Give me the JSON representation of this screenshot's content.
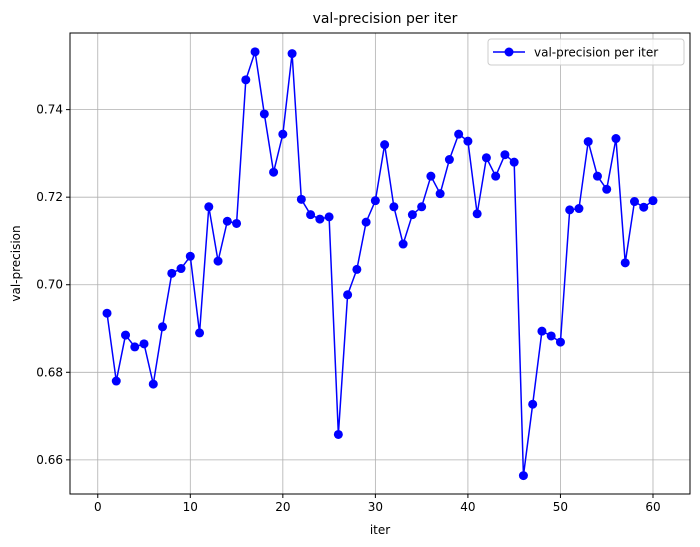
{
  "chart_data": {
    "type": "line",
    "title": "val-precision per iter",
    "xlabel": "iter",
    "ylabel": "val-precision",
    "xlim": [
      -3,
      64
    ],
    "ylim": [
      0.6522,
      0.7575
    ],
    "xticks": [
      0,
      10,
      20,
      30,
      40,
      50,
      60
    ],
    "yticks": [
      0.66,
      0.68,
      0.7,
      0.72,
      0.74
    ],
    "grid": true,
    "legend_position": "top-right",
    "series": [
      {
        "name": "val-precision per iter",
        "color": "#0000ff",
        "marker": "circle",
        "x": [
          1,
          2,
          3,
          4,
          5,
          6,
          7,
          8,
          9,
          10,
          11,
          12,
          13,
          14,
          15,
          16,
          17,
          18,
          19,
          20,
          21,
          22,
          23,
          24,
          25,
          26,
          27,
          28,
          29,
          30,
          31,
          32,
          33,
          34,
          35,
          36,
          37,
          38,
          39,
          40,
          41,
          42,
          43,
          44,
          45,
          46,
          47,
          48,
          49,
          50,
          51,
          52,
          53,
          54,
          55,
          56,
          57,
          58,
          59,
          60
        ],
        "values": [
          0.6935,
          0.678,
          0.6885,
          0.6858,
          0.6865,
          0.6773,
          0.6904,
          0.7026,
          0.7037,
          0.7065,
          0.689,
          0.7178,
          0.7054,
          0.7145,
          0.714,
          0.7468,
          0.7532,
          0.739,
          0.7257,
          0.7344,
          0.7528,
          0.7195,
          0.716,
          0.715,
          0.7155,
          0.6658,
          0.6977,
          0.7035,
          0.7143,
          0.7192,
          0.732,
          0.7178,
          0.7093,
          0.716,
          0.7178,
          0.7248,
          0.7208,
          0.7286,
          0.7344,
          0.7328,
          0.7162,
          0.729,
          0.7248,
          0.7297,
          0.728,
          0.6564,
          0.6727,
          0.6894,
          0.6883,
          0.6869,
          0.7171,
          0.7174,
          0.7327,
          0.7248,
          0.7218,
          0.7334,
          0.705,
          0.719,
          0.7177,
          0.7192
        ]
      }
    ]
  }
}
